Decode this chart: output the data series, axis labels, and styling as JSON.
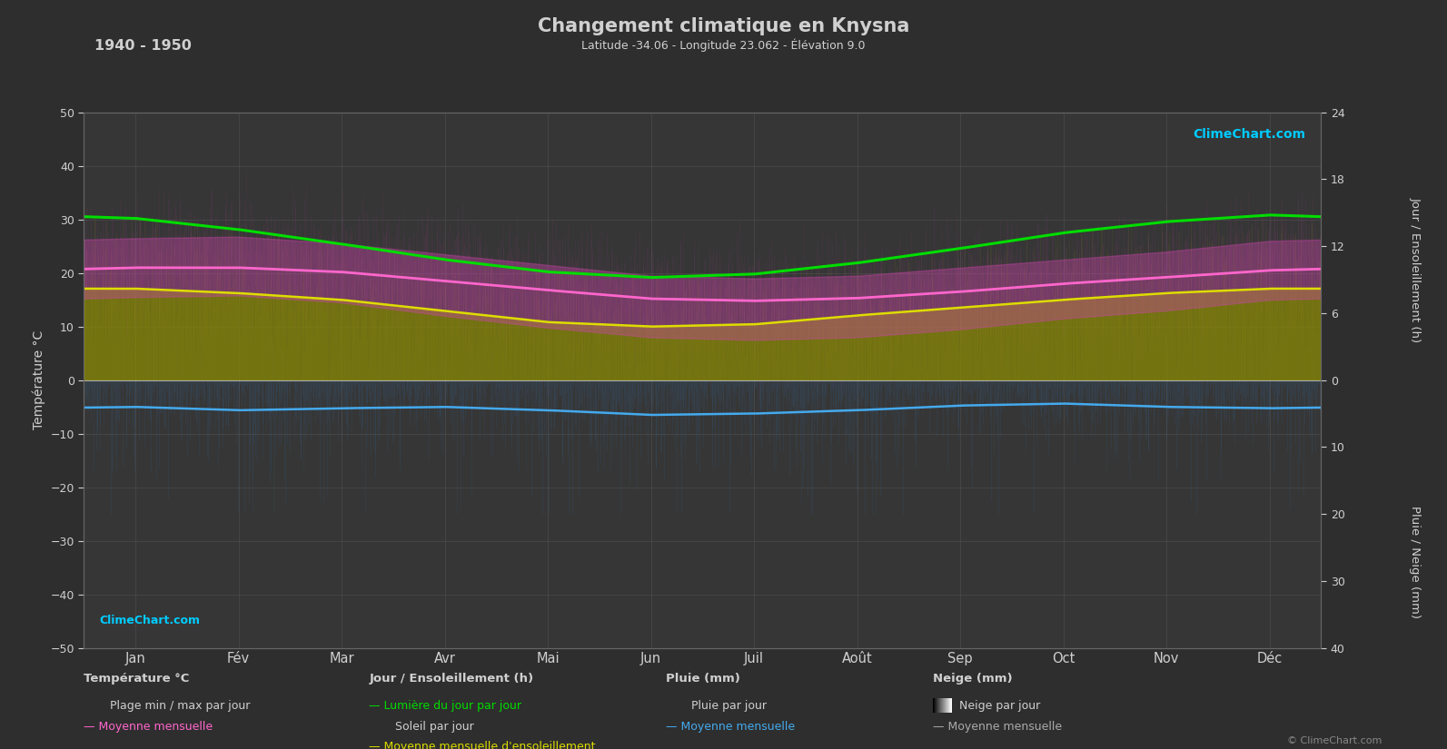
{
  "title": "Changement climatique en Knysna",
  "subtitle": "Latitude -34.06 - Longitude 23.062 - Élévation 9.0",
  "period": "1940 - 1950",
  "bg_color": "#2e2e2e",
  "plot_bg_color": "#363636",
  "grid_color": "#505050",
  "text_color": "#d0d0d0",
  "months_labels": [
    "Jan",
    "Fév",
    "Mar",
    "Avr",
    "Mai",
    "Jun",
    "Juil",
    "Août",
    "Sep",
    "Oct",
    "Nov",
    "Déc"
  ],
  "temp_ylim_lo": -50,
  "temp_ylim_hi": 50,
  "sun_max": 24,
  "rain_max": 40,
  "temp_mean_monthly": [
    21.0,
    21.0,
    20.2,
    18.5,
    16.8,
    15.2,
    14.8,
    15.3,
    16.5,
    18.0,
    19.2,
    20.5
  ],
  "temp_max_mean_monthly": [
    26.5,
    26.8,
    25.5,
    23.5,
    21.5,
    19.5,
    19.0,
    19.5,
    21.0,
    22.5,
    24.0,
    26.0
  ],
  "temp_min_mean_monthly": [
    15.5,
    15.8,
    14.5,
    12.0,
    9.8,
    8.0,
    7.5,
    8.0,
    9.5,
    11.5,
    13.0,
    15.0
  ],
  "daylight_monthly": [
    14.5,
    13.5,
    12.2,
    10.8,
    9.7,
    9.2,
    9.5,
    10.5,
    11.8,
    13.2,
    14.2,
    14.8
  ],
  "sunshine_monthly": [
    8.2,
    7.8,
    7.2,
    6.2,
    5.2,
    4.8,
    5.0,
    5.8,
    6.5,
    7.2,
    7.8,
    8.2
  ],
  "rain_mean_monthly": [
    4.0,
    4.5,
    4.2,
    4.0,
    4.5,
    5.2,
    5.0,
    4.5,
    3.8,
    3.5,
    4.0,
    4.2
  ],
  "temp_line_color": "#ff66cc",
  "daylight_line_color": "#00dd00",
  "sunshine_line_color": "#dddd00",
  "rain_line_color": "#44aaee",
  "temp_fill_color": "#cc44aa",
  "sunshine_fill_color": "#909000",
  "rain_bar_color": "#3377bb",
  "sun_bar_color": "#999900",
  "seed": 42
}
